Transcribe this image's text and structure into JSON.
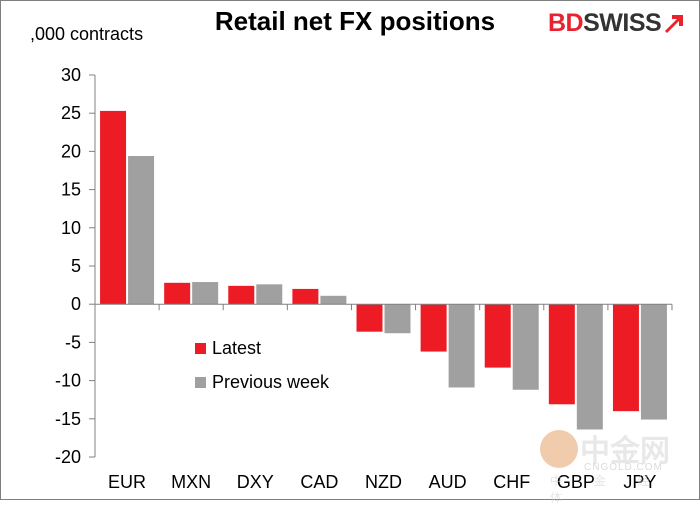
{
  "header": {
    "title": "Retail net FX positions",
    "units": ",000 contracts"
  },
  "logo": {
    "part1": "BD",
    "part2": "SWISS",
    "brand_red": "#e8232e",
    "brand_dark": "#333333"
  },
  "watermark": {
    "chinese": "中金网",
    "site": "CNGOLD.COM",
    "tagline": "中 金 经 体"
  },
  "chart_data": {
    "type": "bar",
    "categories": [
      "EUR",
      "MXN",
      "DXY",
      "CAD",
      "NZD",
      "AUD",
      "CHF",
      "GBP",
      "JPY"
    ],
    "series": [
      {
        "name": "Latest",
        "color": "#ed1c24",
        "values": [
          25.3,
          2.8,
          2.4,
          2.0,
          -3.6,
          -6.2,
          -8.3,
          -13.1,
          -14.0
        ]
      },
      {
        "name": "Previous week",
        "color": "#a0a0a0",
        "values": [
          19.4,
          2.9,
          2.6,
          1.1,
          -3.8,
          -10.9,
          -11.2,
          -16.4,
          -15.1
        ]
      }
    ],
    "ylim": [
      -20,
      30
    ],
    "yticks": [
      30,
      25,
      20,
      15,
      10,
      5,
      0,
      -5,
      -10,
      -15,
      -20
    ],
    "grid": false,
    "legend_position": "lower-left"
  }
}
